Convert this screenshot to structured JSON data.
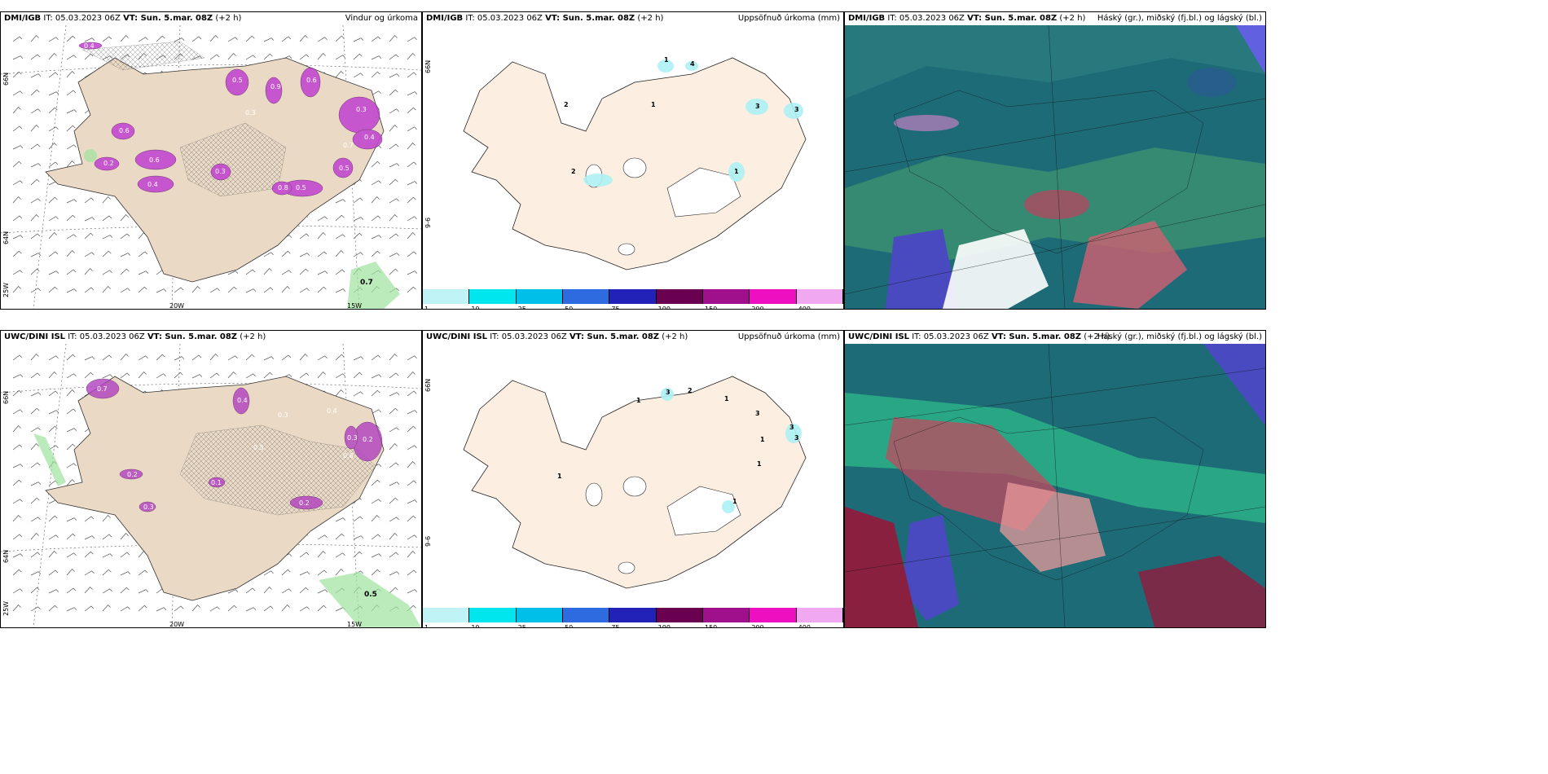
{
  "panels": [
    {
      "source": "DMI/IGB",
      "it": "IT: 05.03.2023 06Z",
      "vt": "VT: Sun. 5.mar. 08Z",
      "offset": "(+2 h)",
      "title": "Vindur og úrkoma"
    },
    {
      "source": "DMI/IGB",
      "it": "IT: 05.03.2023 06Z",
      "vt": "VT: Sun. 5.mar. 08Z",
      "offset": "(+2 h)",
      "title": "Uppsöfnuð úrkoma (mm)"
    },
    {
      "source": "DMI/IGB",
      "it": "IT: 05.03.2023 06Z",
      "vt": "VT: Sun. 5.mar. 08Z",
      "offset": "(+2 h)",
      "title": "Háský (gr.), miðský (fj.bl.) og lágský (bl.)"
    },
    {
      "source": "UWC/DINI ISL",
      "it": "IT: 05.03.2023 06Z",
      "vt": "VT: Sun. 5.mar. 08Z",
      "offset": "(+2 h)",
      "title": ""
    },
    {
      "source": "UWC/DINI ISL",
      "it": "IT: 05.03.2023 06Z",
      "vt": "VT: Sun. 5.mar. 08Z",
      "offset": "(+2 h)",
      "title": "Uppsöfnuð úrkoma (mm)"
    },
    {
      "source": "UWC/DINI ISL",
      "it": "IT: 05.03.2023 06Z",
      "vt": "VT: Sun. 5.mar. 08Z",
      "offset": "(+2 h)",
      "title": "Háský (gr.), miðský (fj.bl.) og lágský (bl.)"
    }
  ],
  "axes": {
    "lat66": "66N",
    "lat64": "64N",
    "lon25": "25W",
    "lon20": "20W",
    "lon15": "15W",
    "lon_grid": "9-6"
  },
  "wind_labels_top": [
    "0.4",
    "0.5",
    "0.9",
    "0.6",
    "0.3",
    "0.4",
    "0.6",
    "0.4",
    "0.2",
    "0.3",
    "0.5",
    "0.8",
    "0.6",
    "0.5",
    "0.3",
    "0.7"
  ],
  "wind_labels_bottom": [
    "0.7",
    "0.4",
    "0.2",
    "0.3",
    "0.2",
    "0.3",
    "0.2",
    "0.1",
    "0.4",
    "0.6",
    "0.3",
    "0.5"
  ],
  "precip_labels_top": [
    "1",
    "4",
    "3",
    "3",
    "2",
    "1",
    "2",
    "1"
  ],
  "precip_labels_bottom": [
    "1",
    "3",
    "2",
    "1",
    "3",
    "1",
    "1",
    "3",
    "3",
    "1",
    "1"
  ],
  "colorbar": {
    "labels": [
      "1",
      "10",
      "25",
      "50",
      "75",
      "100",
      "150",
      "200",
      "400"
    ],
    "colors": [
      "#bff3f5",
      "#00e6ee",
      "#00c0ea",
      "#2f6be0",
      "#2222b8",
      "#6a0050",
      "#a0108c",
      "#ee10c0",
      "#f0a8f0"
    ]
  },
  "colors": {
    "land": "#ead9c4",
    "land_light": "#f9ecdf",
    "precip": "#c040d0",
    "cloud_high": "#1e6b78",
    "cloud_mid": "#2e9e78",
    "cloud_low": "#4040c0"
  }
}
